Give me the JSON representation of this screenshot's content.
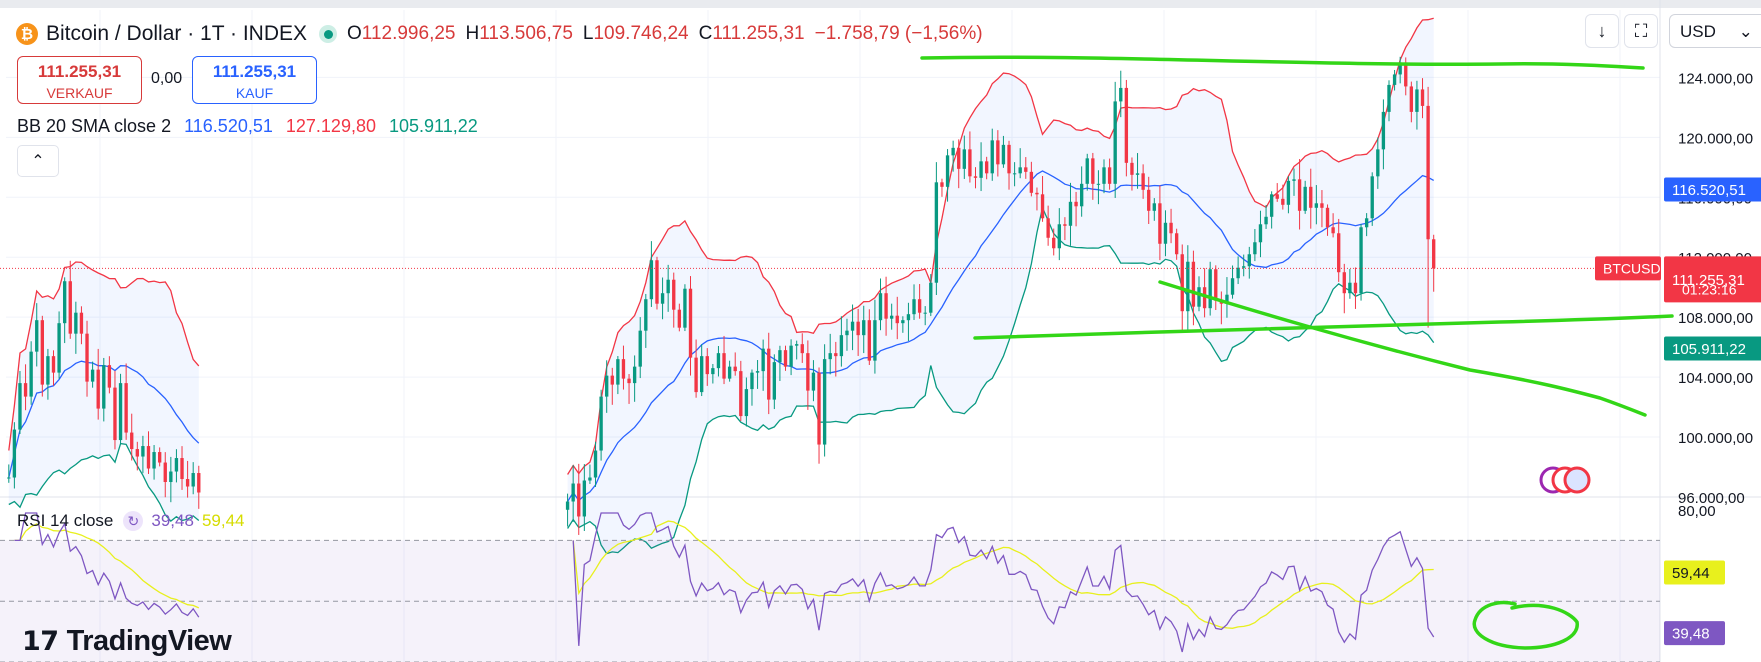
{
  "header": {
    "title": "Bitcoin / Dollar · 1T · INDEX",
    "open_label": "O",
    "open": "112.996,25",
    "high_label": "H",
    "high": "113.506,75",
    "low_label": "L",
    "low": "109.746,24",
    "close_label": "C",
    "close": "111.255,31",
    "change": "−1.758,79 (−1,56%)",
    "currency": "USD"
  },
  "trade": {
    "sell_price": "111.255,31",
    "sell_label": "VERKAUF",
    "spread": "0,00",
    "buy_price": "111.255,31",
    "buy_label": "KAUF"
  },
  "bb_legend": {
    "name": "BB 20 SMA close 2",
    "basis": "116.520,51",
    "upper": "127.129,80",
    "lower": "105.911,22"
  },
  "rsi_legend": {
    "name": "RSI 14 close",
    "rsi": "39,48",
    "ma": "59,44"
  },
  "brand": {
    "name": "TradingView"
  },
  "colors": {
    "up": "#089981",
    "down": "#f23645",
    "basis": "#2962ff",
    "upper": "#f23645",
    "lower": "#089981",
    "rsi": "#7e57c2",
    "rsi_ma": "#e8f01d",
    "annotation": "#33d617"
  },
  "chart_data": [
    {
      "type": "candlestick",
      "title": "Bitcoin / Dollar · 1T · INDEX",
      "ylim": [
        96000,
        128500
      ],
      "y_ticks": [
        "124.000,00",
        "120.000,00",
        "116.000,00",
        "112.000,00",
        "108.000,00",
        "104.000,00",
        "100.000,00",
        "96.000,00"
      ],
      "y_tick_values": [
        124000,
        120000,
        116000,
        112000,
        108000,
        104000,
        100000,
        96000
      ],
      "series": [
        {
          "name": "Bitcoin close",
          "segments": [
            {
              "x_start": 0,
              "closes": [
                97300,
                100500,
                103600,
                102700,
                105700,
                107800,
                103500,
                105400,
                104300,
                107600,
                110400,
                106900,
                108300,
                106900,
                103700,
                104500,
                101900,
                104800,
                103300,
                99800,
                103600,
                100300,
                99200,
                98700,
                99400,
                97900,
                99000,
                98300,
                97000,
                97700,
                98600,
                97200,
                96700,
                97600,
                96300
              ]
            },
            {
              "x_start": 100,
              "closes": [
                95700,
                96900,
                94700,
                97100,
                97300,
                99100,
                102700,
                104100,
                103500,
                105200,
                103900,
                103600,
                104700,
                107100,
                109200,
                111800,
                108900,
                109600,
                110500,
                108500,
                107300,
                109900,
                105300,
                103000,
                105400,
                104200,
                104600,
                105600,
                103900,
                104700,
                104400,
                101400,
                103200,
                104300,
                104400,
                105900,
                102500,
                105000,
                105800,
                104700,
                106100,
                106200,
                105600,
                103100,
                104300,
                99500,
                105200,
                105600,
                105400,
                106800,
                107100,
                107700,
                106800,
                107800,
                105100,
                107800,
                109600,
                107900,
                108100,
                107600,
                107800,
                108200,
                109200,
                108300,
                108300,
                110300,
                117000,
                116700,
                118800,
                119300,
                117900,
                119200,
                117400,
                117300,
                118400,
                117600,
                119800,
                118200,
                119500,
                117600,
                117600,
                118000,
                117700,
                116300,
                116200,
                114600,
                113300,
                112600,
                114200,
                114100,
                115700,
                115400,
                116900,
                118600,
                116900,
                116900,
                118000,
                116900,
                122400,
                123300,
                118300,
                117500,
                117600,
                116500,
                115100,
                115600,
                112900,
                114300,
                113600,
                112200,
                108400,
                111700,
                108700,
                110000,
                108600,
                111200,
                109100,
                108900,
                109500,
                110600,
                111300,
                111400,
                112200,
                113000,
                114200,
                114700,
                116200,
                115900,
                115500,
                117100,
                117200,
                115100,
                116700,
                115300,
                115600,
                115300,
                114000,
                113600,
                111000,
                109600,
                110300,
                109600,
                114000,
                114600,
                117400,
                119200,
                121700,
                123500,
                124200,
                125000,
                123400,
                121700,
                123200,
                122100,
                113200,
                111255
              ]
            }
          ]
        },
        {
          "name": "BB basis (SMA 20)",
          "last": 116520.51
        },
        {
          "name": "BB upper",
          "last": 127129.8
        },
        {
          "name": "BB lower",
          "last": 105911.22
        }
      ],
      "price_labels": {
        "last_price": "111.255,31",
        "symbol": "BTCUSD",
        "countdown": "01:23:16",
        "basis": "116.520,51",
        "lower": "105.911,22"
      }
    },
    {
      "type": "line",
      "title": "RSI 14 close",
      "ylim": [
        30,
        80
      ],
      "y_ticks": [
        "80,00"
      ],
      "y_tick_values": [
        80
      ],
      "bands": [
        70,
        50,
        30
      ],
      "series": [
        {
          "name": "RSI",
          "last": 39.48
        },
        {
          "name": "RSI MA",
          "last": 59.44
        }
      ],
      "price_labels": {
        "rsi": "39,48",
        "ma": "59,44"
      }
    }
  ]
}
